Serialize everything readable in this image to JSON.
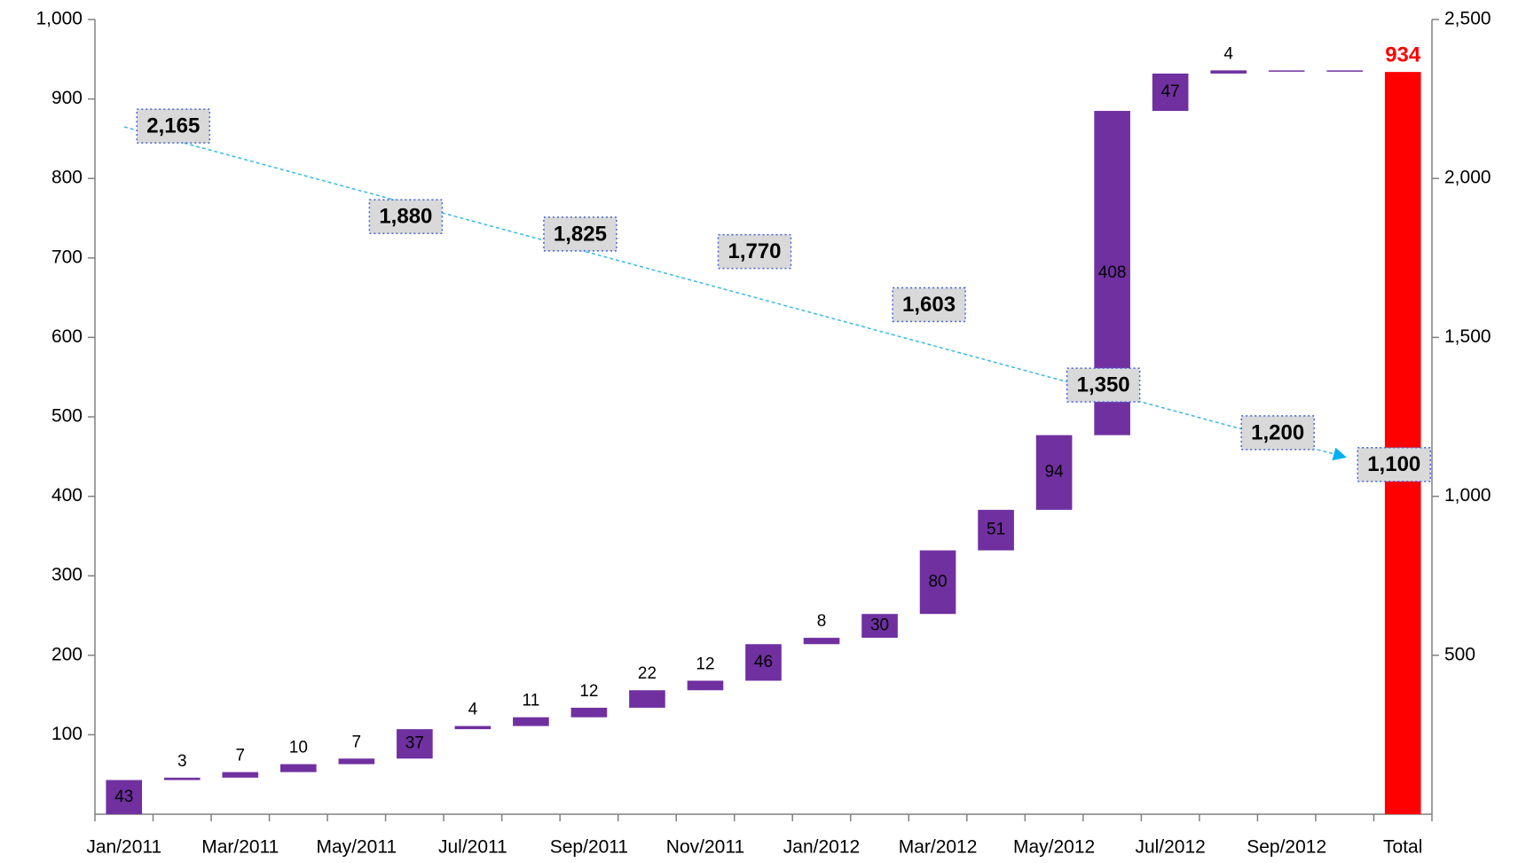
{
  "chart_data": {
    "type": "waterfall",
    "categories": [
      "Jan/2011",
      null,
      "Mar/2011",
      null,
      "May/2011",
      null,
      "Jul/2011",
      null,
      "Sep/2011",
      null,
      "Nov/2011",
      null,
      "Jan/2012",
      null,
      "Mar/2012",
      null,
      "May/2012",
      null,
      "Jul/2012",
      null,
      "Sep/2012",
      null,
      "Total"
    ],
    "values": [
      43,
      3,
      7,
      10,
      7,
      37,
      4,
      11,
      12,
      22,
      12,
      46,
      8,
      30,
      80,
      51,
      94,
      408,
      47,
      4,
      0,
      0,
      934
    ],
    "value_labels": [
      "43",
      "3",
      "7",
      "10",
      "7",
      "37",
      "4",
      "11",
      "12",
      "22",
      "12",
      "46",
      "8",
      "30",
      "80",
      "51",
      "94",
      "408",
      "47",
      "4",
      null,
      null,
      "934"
    ],
    "color": "#7030a0",
    "total_color": "#ff0000",
    "ylim": [
      0,
      1000
    ],
    "yticks": [
      100,
      200,
      300,
      400,
      500,
      600,
      700,
      800,
      900,
      {
        "value": 1000,
        "label": "1,000"
      }
    ],
    "y2lim": [
      0,
      2500
    ],
    "y2ticks": [
      500,
      {
        "value": 1000,
        "label": "1,000"
      },
      {
        "value": 1500,
        "label": "1,500"
      },
      {
        "value": 2000,
        "label": "2,000"
      },
      {
        "value": 2500,
        "label": "2,500"
      }
    ],
    "annotations": {
      "axis": "y2",
      "values": [
        null,
        2165,
        null,
        null,
        null,
        1880,
        null,
        null,
        1825,
        null,
        null,
        1770,
        null,
        null,
        1603,
        null,
        null,
        1350,
        null,
        null,
        1200,
        null,
        1100
      ],
      "value_labels": [
        null,
        "2,165",
        null,
        null,
        null,
        "1,880",
        null,
        null,
        "1,825",
        null,
        null,
        "1,770",
        null,
        null,
        "1,603",
        null,
        null,
        "1,350",
        null,
        null,
        "1,200",
        null,
        "1,100"
      ]
    }
  }
}
